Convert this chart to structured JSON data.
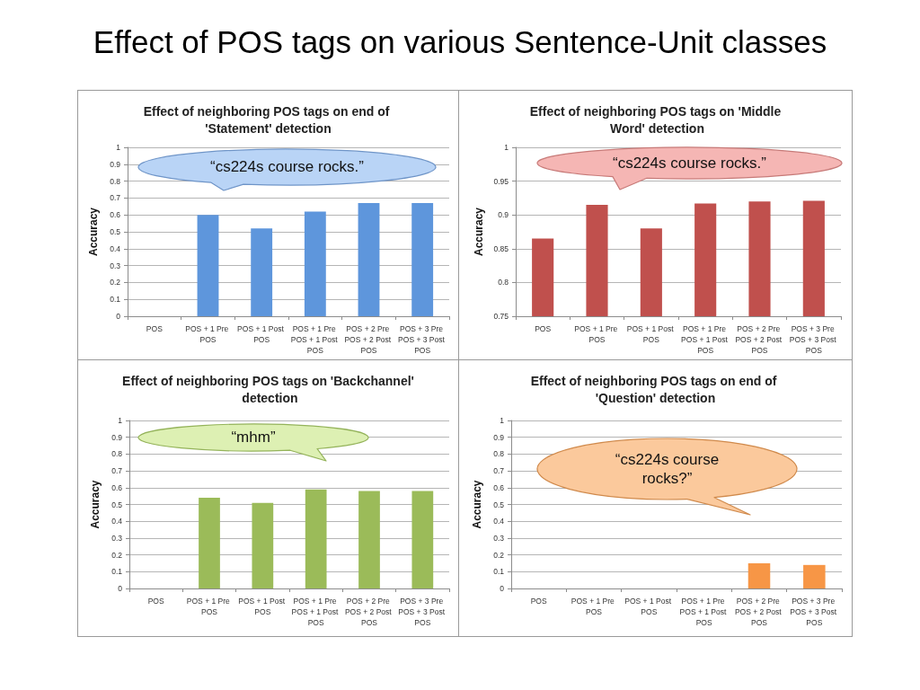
{
  "chart_data": [
    {
      "type": "bar",
      "title": "Effect of neighboring POS tags on end of 'Statement' detection",
      "ylabel": "Accuracy",
      "categories": [
        "POS",
        "POS + 1 Pre POS",
        "POS + 1 Post POS",
        "POS + 1 Pre POS + 1 Post POS",
        "POS + 2 Pre POS + 2 Post POS",
        "POS + 3 Pre POS + 3 Post POS"
      ],
      "values": [
        0,
        0.6,
        0.52,
        0.62,
        0.67,
        0.67
      ],
      "color": "#5e96dc",
      "ylim": [
        0,
        1
      ],
      "yticks": [
        0,
        0.1,
        0.2,
        0.3,
        0.4,
        0.5,
        0.6,
        0.7,
        0.8,
        0.9,
        1
      ],
      "grid": "y",
      "annotations": [
        "Effect of POS tags on various Sentence-Unit classes",
        "“cs224s course rocks.”"
      ]
    },
    {
      "type": "bar",
      "title": "Effect of neighboring POS tags on 'Middle Word' detection",
      "ylabel": "Accuracy",
      "categories": [
        "POS",
        "POS + 1 Pre POS",
        "POS + 1 Post POS",
        "POS + 1 Pre POS + 1 Post POS",
        "POS + 2 Pre POS + 2 Post POS",
        "POS + 3 Pre POS + 3 Post POS"
      ],
      "values": [
        0.865,
        0.915,
        0.88,
        0.917,
        0.92,
        0.921
      ],
      "color": "#c0504d",
      "ylim": [
        0.75,
        1
      ],
      "yticks": [
        0.75,
        0.8,
        0.85,
        0.9,
        0.95,
        1
      ],
      "grid": "y",
      "annotations": [
        "“cs224s course rocks.”"
      ]
    },
    {
      "type": "bar",
      "title": "Effect of neighboring POS tags on 'Backchannel' detection",
      "ylabel": "Accuracy",
      "categories": [
        "POS",
        "POS + 1 Pre POS",
        "POS + 1 Post POS",
        "POS + 1 Pre POS + 1 Post POS",
        "POS + 2 Pre POS + 2 Post POS",
        "POS + 3 Pre POS + 3 Post POS"
      ],
      "values": [
        0,
        0.54,
        0.51,
        0.59,
        0.58,
        0.58
      ],
      "color": "#9bbb59",
      "ylim": [
        0,
        1
      ],
      "yticks": [
        0,
        0.1,
        0.2,
        0.3,
        0.4,
        0.5,
        0.6,
        0.7,
        0.8,
        0.9,
        1
      ],
      "grid": "y",
      "annotations": [
        "“mhm”"
      ]
    },
    {
      "type": "bar",
      "title": "Effect of neighboring POS tags on end of 'Question' detection",
      "ylabel": "Accuracy",
      "categories": [
        "POS",
        "POS + 1 Pre POS",
        "POS + 1 Post POS",
        "POS + 1 Pre POS + 1 Post POS",
        "POS + 2 Pre POS + 2 Post POS",
        "POS + 3 Pre POS + 3 Post POS"
      ],
      "values": [
        0,
        0,
        0,
        0,
        0.15,
        0.14
      ],
      "color": "#f79646",
      "ylim": [
        0,
        1
      ],
      "yticks": [
        0,
        0.1,
        0.2,
        0.3,
        0.4,
        0.5,
        0.6,
        0.7,
        0.8,
        0.9,
        1
      ],
      "grid": "y",
      "annotations": [
        "“cs224s course rocks?”"
      ]
    }
  ]
}
